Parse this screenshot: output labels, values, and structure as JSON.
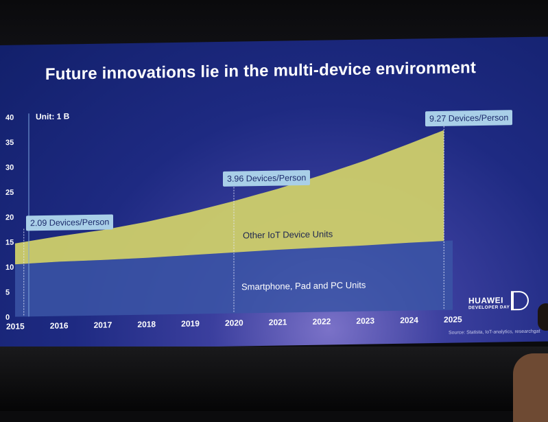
{
  "slide": {
    "title": "Future innovations lie in the multi-device environment",
    "unit": "Unit:  1 B",
    "source": "Source: Statista, IoT-analytics, researchgat",
    "logo": {
      "name": "HUAWEI",
      "sub": "DEVELOPER DAY"
    }
  },
  "chart_data": {
    "type": "area",
    "title": "Future innovations lie in the multi-device environment",
    "unit": "Unit:  1 B",
    "x": [
      2015,
      2016,
      2017,
      2018,
      2019,
      2020,
      2021,
      2022,
      2023,
      2024,
      2025
    ],
    "ylim": [
      0,
      40
    ],
    "yticks": [
      0,
      5,
      10,
      15,
      20,
      25,
      30,
      35,
      40
    ],
    "xlim": [
      2015,
      2025
    ],
    "series": [
      {
        "name": "Smartphone, Pad and PC Units",
        "color": "#3b55a6",
        "points": [
          [
            2015,
            10.5
          ],
          [
            2016,
            10.9
          ],
          [
            2017,
            11.1
          ],
          [
            2018,
            11.4
          ],
          [
            2019,
            11.8
          ],
          [
            2020,
            12.2
          ],
          [
            2021,
            12.6
          ],
          [
            2022,
            12.9
          ],
          [
            2023,
            13.2
          ],
          [
            2024,
            13.6
          ],
          [
            2025,
            13.9
          ]
        ]
      },
      {
        "name": "Other IoT Device Units",
        "color": "#cfcf6a",
        "points": [
          [
            2015,
            4.2
          ],
          [
            2016,
            5.1
          ],
          [
            2017,
            6.0
          ],
          [
            2018,
            7.2
          ],
          [
            2019,
            8.6
          ],
          [
            2020,
            10.3
          ],
          [
            2021,
            12.2
          ],
          [
            2022,
            14.5
          ],
          [
            2023,
            17.0
          ],
          [
            2024,
            19.8
          ],
          [
            2024.8,
            22.2
          ]
        ]
      }
    ],
    "callouts": [
      {
        "x": 2015.2,
        "text": "2.09 Devices/Person"
      },
      {
        "x": 2020,
        "text": "3.96  Devices/Person"
      },
      {
        "x": 2024.8,
        "text": "9.27 Devices/Person"
      }
    ],
    "colors": {
      "label_dark": "#1c2450",
      "label_light": "#ffffff",
      "callout_bg": "#a9cfe8"
    }
  }
}
